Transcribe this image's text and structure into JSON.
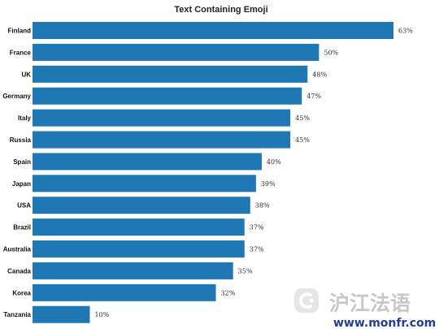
{
  "chart_data": {
    "type": "bar",
    "orientation": "horizontal",
    "title": "Text Containing Emoji",
    "categories": [
      "Finland",
      "France",
      "UK",
      "Germany",
      "Italy",
      "Russia",
      "Spain",
      "Japan",
      "USA",
      "Brazil",
      "Australia",
      "Canada",
      "Korea",
      "Tanzania"
    ],
    "values": [
      63,
      50,
      48,
      47,
      45,
      45,
      40,
      39,
      38,
      37,
      37,
      35,
      32,
      10
    ],
    "value_labels": [
      "63%",
      "50%",
      "48%",
      "47%",
      "45%",
      "45%",
      "40%",
      "39%",
      "38%",
      "37%",
      "37%",
      "35%",
      "32%",
      "10%"
    ],
    "xlabel": "",
    "ylabel": "",
    "xlim": [
      0,
      63
    ],
    "grid": false,
    "bar_color": "#1f77b4"
  },
  "watermark": {
    "brand": "沪江法语",
    "url": "www.monfr.com",
    "brand_color": "#c8c8c8",
    "url_color": "#1f3f9a"
  }
}
